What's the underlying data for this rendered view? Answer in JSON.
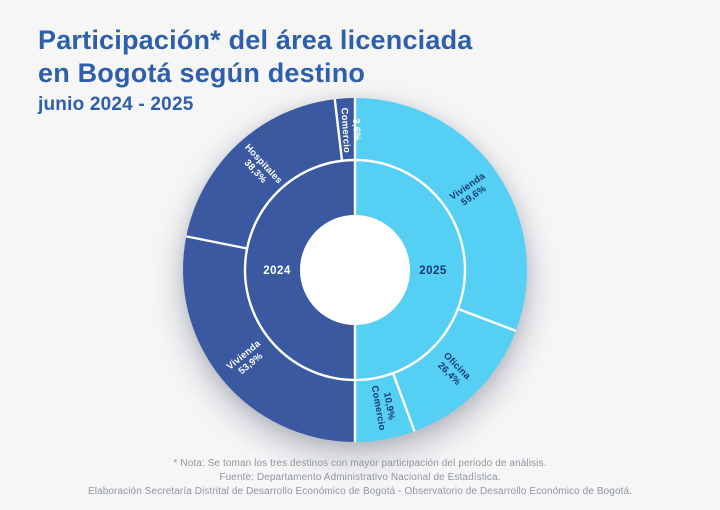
{
  "header": {
    "title_line1": "Participación* del área licenciada",
    "title_line2": "en Bogotá según destino",
    "subtitle": "junio 2024 - 2025"
  },
  "palette": {
    "background": "#f6f6f7",
    "title_blue": "#2e5fab",
    "dark_blue_2024": "#3a59a1",
    "light_blue_2025": "#56cff5",
    "navy_label": "#1b3a6b",
    "white": "#ffffff",
    "footer_gray": "#8f96a0"
  },
  "chart_data": {
    "type": "pie",
    "variant": "nested-half-donut",
    "description": "Two half-donut rings sharing one circle: left half = 2024, right half = 2025. Outer ring segments show participation (%) of licensed area by destination; inner ring shows the year.",
    "units": "%",
    "grid": false,
    "legend_position": "labels-inside-segments",
    "series": [
      {
        "name": "2024",
        "half": "left",
        "color": "#3a59a1",
        "label_color": "#ffffff",
        "segments": [
          {
            "label": "Vivienda",
            "value": 53.9,
            "display": "53,9%"
          },
          {
            "label": "Hospitales",
            "value": 38.3,
            "display": "38,3%"
          },
          {
            "label": "Comercio",
            "value": 3.6,
            "display": "3,6%"
          }
        ]
      },
      {
        "name": "2025",
        "half": "right",
        "color": "#56cff5",
        "label_color": "#1b3a6b",
        "segments": [
          {
            "label": "Vivienda",
            "value": 59.6,
            "display": "59,6%"
          },
          {
            "label": "Oficina",
            "value": 26.4,
            "display": "26,4%"
          },
          {
            "label": "Comercio",
            "value": 10.9,
            "display": "10,9%"
          }
        ]
      }
    ]
  },
  "footer": {
    "note": "* Nota: Se toman los tres destinos con mayor participación del periodo de análisis.",
    "source": "Fuente: Departamento Administrativo Nacional de Estadística.",
    "elaboration": "Elaboración Secretaría Distrital de Desarrollo Económico de Bogotá - Observatorio de Desarrollo Económico de Bogotá."
  }
}
